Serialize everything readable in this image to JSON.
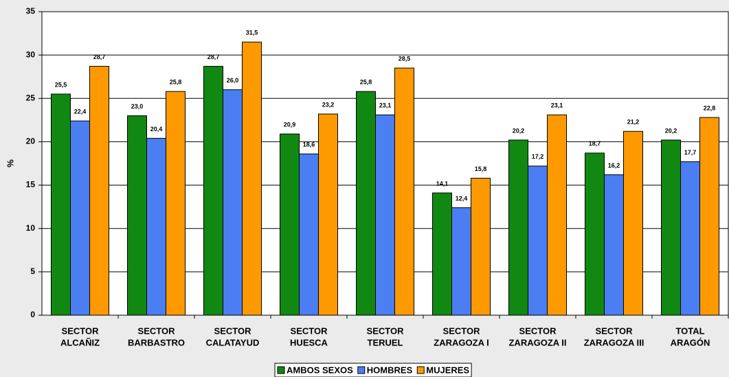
{
  "chart_data": {
    "type": "bar",
    "y_label": "%",
    "categories": [
      [
        "SECTOR",
        "ALCAÑIZ"
      ],
      [
        "SECTOR",
        "BARBASTRO"
      ],
      [
        "SECTOR",
        "CALATAYUD"
      ],
      [
        "SECTOR",
        "HUESCA"
      ],
      [
        "SECTOR",
        "TERUEL"
      ],
      [
        "SECTOR",
        "ZARAGOZA I"
      ],
      [
        "SECTOR",
        "ZARAGOZA II"
      ],
      [
        "SECTOR",
        "ZARAGOZA III"
      ],
      [
        "TOTAL",
        "ARAGÓN"
      ]
    ],
    "series": [
      {
        "name": "AMBOS SEXOS",
        "color": "#118811",
        "values": [
          25.5,
          23.0,
          28.7,
          20.9,
          25.8,
          14.1,
          20.2,
          18.7,
          20.2
        ],
        "value_labels": [
          "25,5",
          "23,0",
          "28,7",
          "20,9",
          "25,8",
          "14,1",
          "20,2",
          "18,7",
          "20,2"
        ]
      },
      {
        "name": "HOMBRES",
        "color": "#4a7ef2",
        "values": [
          22.4,
          20.4,
          26.0,
          18.6,
          23.1,
          12.4,
          17.2,
          16.2,
          17.7
        ],
        "value_labels": [
          "22,4",
          "20,4",
          "26,0",
          "18,6",
          "23,1",
          "12,4",
          "17,2",
          "16,2",
          "17,7"
        ]
      },
      {
        "name": "MUJERES",
        "color": "#ff9900",
        "values": [
          28.7,
          25.8,
          31.5,
          23.2,
          28.5,
          15.8,
          23.1,
          21.2,
          22.8
        ],
        "value_labels": [
          "28,7",
          "25,8",
          "31,5",
          "23,2",
          "28,5",
          "15,8",
          "23,1",
          "21,2",
          "22,8"
        ]
      }
    ],
    "ylim": [
      0,
      35
    ],
    "yticks": [
      0,
      5,
      10,
      15,
      20,
      25,
      30,
      35
    ],
    "grid": true,
    "legend": "bottom"
  }
}
